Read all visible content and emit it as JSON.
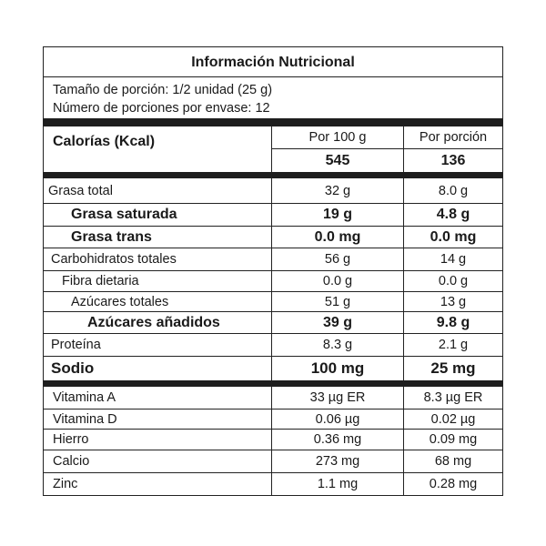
{
  "title": "Información Nutricional",
  "serving": {
    "size": "Tamaño de porción: 1/2 unidad (25 g)",
    "servings_per_container": "Número de porciones por envase: 12"
  },
  "calories": {
    "label": "Calorías (Kcal)",
    "col1_header": "Por 100 g",
    "col2_header": "Por porción",
    "per100": "545",
    "perServing": "136"
  },
  "nutrients": [
    {
      "name": "Grasa total",
      "per100": "32 g",
      "perServing": "8.0 g",
      "style": "normal",
      "indent": 0
    },
    {
      "name": "Grasa saturada",
      "per100": "19 g",
      "perServing": "4.8 g",
      "style": "bold",
      "indent": 2
    },
    {
      "name": "Grasa trans",
      "per100": "0.0 mg",
      "perServing": "0.0 mg",
      "style": "bold",
      "indent": 2
    },
    {
      "name": "Carbohidratos totales",
      "per100": "56 g",
      "perServing": "14 g",
      "style": "normal",
      "indent": 1
    },
    {
      "name": "Fibra dietaria",
      "per100": "0.0 g",
      "perServing": "0.0 g",
      "style": "normal",
      "indent": 2
    },
    {
      "name": "Azúcares totales",
      "per100": "51 g",
      "perServing": "13 g",
      "style": "normal",
      "indent": 2
    },
    {
      "name": "Azúcares añadidos",
      "per100": "39 g",
      "perServing": "9.8 g",
      "style": "bold",
      "indent": 3
    },
    {
      "name": "Proteína",
      "per100": "8.3 g",
      "perServing": "2.1 g",
      "style": "normal",
      "indent": 1
    },
    {
      "name": "Sodio",
      "per100": "100 mg",
      "perServing": "25 mg",
      "style": "big",
      "indent": 1
    }
  ],
  "vitamins": [
    {
      "name": "Vitamina A",
      "per100": "33 µg ER",
      "perServing": "8.3 µg ER"
    },
    {
      "name": "Vitamina D",
      "per100": "0.06 µg",
      "perServing": "0.02 µg"
    },
    {
      "name": "Hierro",
      "per100": "0.36 mg",
      "perServing": "0.09 mg"
    },
    {
      "name": "Calcio",
      "per100": "273 mg",
      "perServing": "68 mg"
    },
    {
      "name": "Zinc",
      "per100": "1.1 mg",
      "perServing": "0.28 mg"
    }
  ]
}
